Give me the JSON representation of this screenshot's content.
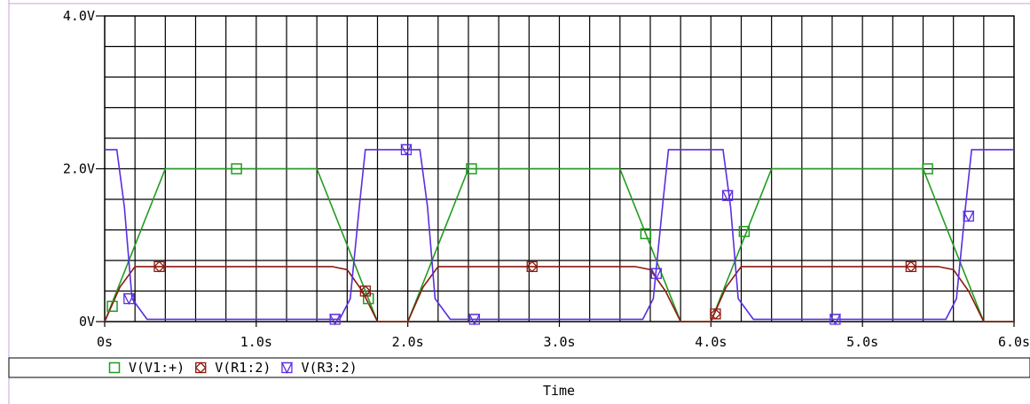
{
  "chart_data": {
    "type": "line",
    "title": "",
    "xlabel": "Time",
    "ylabel": "",
    "xlim": [
      0,
      6.0
    ],
    "ylim": [
      0,
      4.0
    ],
    "x_ticks": [
      {
        "value": 0,
        "label": "0s"
      },
      {
        "value": 1.0,
        "label": "1.0s"
      },
      {
        "value": 2.0,
        "label": "2.0s"
      },
      {
        "value": 3.0,
        "label": "3.0s"
      },
      {
        "value": 4.0,
        "label": "4.0s"
      },
      {
        "value": 5.0,
        "label": "5.0s"
      },
      {
        "value": 6.0,
        "label": "6.0s"
      }
    ],
    "y_ticks": [
      {
        "value": 0,
        "label": "0V"
      },
      {
        "value": 2.0,
        "label": "2.0V"
      },
      {
        "value": 4.0,
        "label": "4.0V"
      }
    ],
    "grid": true,
    "grid_step_x": 0.2,
    "grid_step_y": 0.4,
    "legend_position": "bottom-left",
    "series": [
      {
        "name": "V(V1:+)",
        "color": "#1f9d1f",
        "marker": "square",
        "x": [
          0,
          0.4,
          1.4,
          1.8,
          2.0,
          2.4,
          3.4,
          3.8,
          4.0,
          4.4,
          5.4,
          5.8,
          6.0
        ],
        "y": [
          0,
          2.0,
          2.0,
          0,
          0,
          2.0,
          2.0,
          0,
          0,
          2.0,
          2.0,
          0,
          0
        ],
        "markers_x": [
          0.05,
          0.87,
          1.74,
          2.42,
          3.57,
          4.22,
          5.43
        ],
        "markers_y": [
          0.2,
          2.0,
          0.3,
          2.0,
          1.15,
          1.18,
          2.0
        ]
      },
      {
        "name": "V(R1:2)",
        "color": "#8b1a10",
        "marker": "diamond",
        "x": [
          0,
          0.1,
          0.2,
          1.5,
          1.6,
          1.7,
          1.8,
          2.0,
          2.1,
          2.2,
          3.5,
          3.6,
          3.7,
          3.8,
          4.0,
          4.1,
          4.2,
          5.5,
          5.6,
          5.7,
          5.8,
          6.0
        ],
        "y": [
          0,
          0.45,
          0.72,
          0.72,
          0.68,
          0.4,
          0,
          0,
          0.45,
          0.72,
          0.72,
          0.68,
          0.4,
          0,
          0,
          0.45,
          0.72,
          0.72,
          0.68,
          0.4,
          0,
          0
        ],
        "markers_x": [
          0.36,
          1.72,
          2.82,
          4.03,
          5.32
        ],
        "markers_y": [
          0.72,
          0.4,
          0.72,
          0.1,
          0.72
        ]
      },
      {
        "name": "V(R3:2)",
        "color": "#5a2ee0",
        "marker": "triangle-down",
        "x": [
          0,
          0.08,
          0.13,
          0.18,
          0.28,
          1.55,
          1.62,
          1.68,
          1.72,
          1.82,
          2.08,
          2.13,
          2.18,
          2.28,
          3.55,
          3.62,
          3.68,
          3.72,
          3.82,
          4.08,
          4.13,
          4.18,
          4.28,
          5.55,
          5.62,
          5.68,
          5.72,
          5.82,
          6.0
        ],
        "y": [
          2.25,
          2.25,
          1.5,
          0.3,
          0.03,
          0.03,
          0.3,
          1.5,
          2.25,
          2.25,
          2.25,
          1.5,
          0.3,
          0.03,
          0.03,
          0.3,
          1.5,
          2.25,
          2.25,
          2.25,
          1.5,
          0.3,
          0.03,
          0.03,
          0.3,
          1.5,
          2.25,
          2.25,
          2.25
        ],
        "markers_x": [
          0.16,
          1.52,
          1.99,
          2.44,
          3.64,
          4.11,
          4.82,
          5.7
        ],
        "markers_y": [
          0.3,
          0.03,
          2.25,
          0.03,
          0.63,
          1.65,
          0.03,
          1.38
        ]
      }
    ]
  }
}
